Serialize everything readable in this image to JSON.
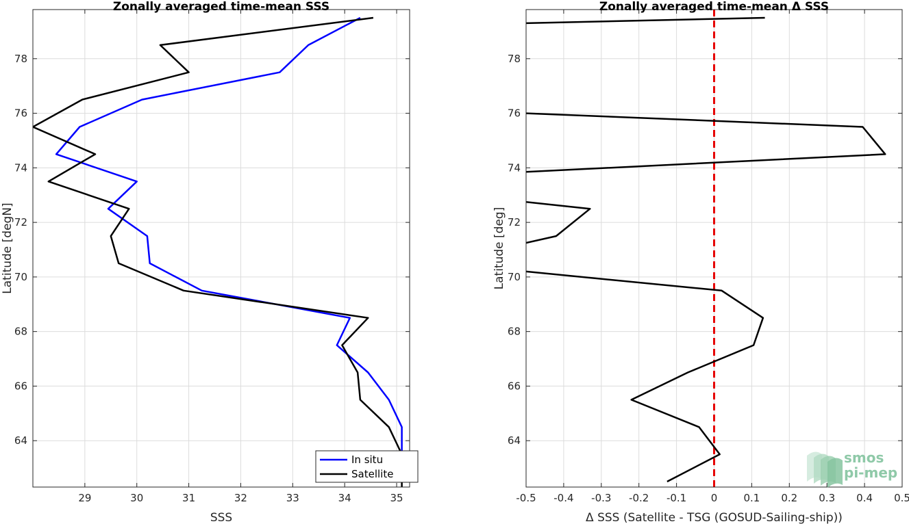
{
  "chart_data": [
    {
      "type": "line",
      "title": "Zonally averaged time-mean SSS",
      "xlabel": "SSS",
      "ylabel": "Latitude [degN]",
      "xlim": [
        28,
        35.25
      ],
      "ylim": [
        62.3,
        79.8
      ],
      "xticks": [
        29,
        30,
        31,
        32,
        33,
        34,
        35
      ],
      "yticks": [
        64,
        66,
        68,
        70,
        72,
        74,
        76,
        78
      ],
      "grid": true,
      "legend_position": "bottom-right",
      "series": [
        {
          "name": "In situ",
          "color": "#0000ff",
          "x": [
            35.25,
            35.1,
            35.1,
            34.85,
            34.45,
            33.85,
            34.1,
            31.25,
            30.25,
            30.2,
            29.45,
            30.0,
            28.45,
            28.9,
            30.1,
            32.75,
            33.3,
            34.3
          ],
          "y": [
            62.5,
            63.5,
            64.5,
            65.5,
            66.5,
            67.5,
            68.5,
            69.5,
            70.5,
            71.5,
            72.5,
            73.5,
            74.5,
            75.5,
            76.5,
            77.5,
            78.5,
            79.5
          ]
        },
        {
          "name": "Satellite",
          "color": "#000000",
          "x": [
            35.1,
            35.1,
            34.85,
            34.3,
            34.25,
            33.95,
            34.45,
            30.9,
            29.65,
            29.5,
            29.85,
            28.3,
            29.2,
            28.0,
            28.95,
            31.0,
            30.45,
            34.55
          ],
          "y": [
            62.3,
            63.5,
            64.5,
            65.5,
            66.5,
            67.5,
            68.5,
            69.5,
            70.5,
            71.5,
            72.5,
            73.5,
            74.5,
            75.5,
            76.5,
            77.5,
            78.5,
            79.5
          ]
        }
      ]
    },
    {
      "type": "line",
      "title": "Zonally averaged time-mean Δ SSS",
      "xlabel": "Δ SSS (Satellite - TSG (GOSUD-Sailing-ship))",
      "ylabel": "Latitude [deg]",
      "xlim": [
        -0.5,
        0.5
      ],
      "ylim": [
        62.3,
        79.8
      ],
      "xticks": [
        -0.5,
        -0.4,
        -0.3,
        -0.2,
        -0.1,
        0,
        0.1,
        0.2,
        0.3,
        0.4,
        0.5
      ],
      "xticklabels": [
        "-0.5",
        "-0.4",
        "-0.3",
        "-0.2",
        "-0.1",
        "0",
        "0.1",
        "0.2",
        "0.3",
        "0.4",
        "0.5"
      ],
      "yticks": [
        64,
        66,
        68,
        70,
        72,
        74,
        76,
        78
      ],
      "grid": true,
      "reference_line": {
        "x": 0,
        "color": "#e60000",
        "style": "dashed"
      },
      "series": [
        {
          "color": "#000000",
          "segments": [
            {
              "x": [
                -0.125,
                0.015,
                -0.04,
                -0.22,
                -0.07,
                0.105,
                0.13,
                0.02,
                -0.5
              ],
              "y": [
                62.5,
                63.5,
                64.5,
                65.5,
                66.5,
                67.5,
                68.5,
                69.5,
                70.2
              ]
            },
            {
              "x": [
                -0.5,
                -0.42,
                -0.33,
                -0.5
              ],
              "y": [
                71.25,
                71.5,
                72.5,
                72.75
              ]
            },
            {
              "x": [
                -0.5,
                0.455,
                0.395,
                -0.5
              ],
              "y": [
                73.85,
                74.5,
                75.5,
                76.0
              ]
            },
            {
              "x": [
                -0.5,
                0.135
              ],
              "y": [
                79.3,
                79.5
              ]
            }
          ]
        }
      ]
    }
  ],
  "logo": {
    "line1": "smos",
    "line2": "pi-mep"
  }
}
